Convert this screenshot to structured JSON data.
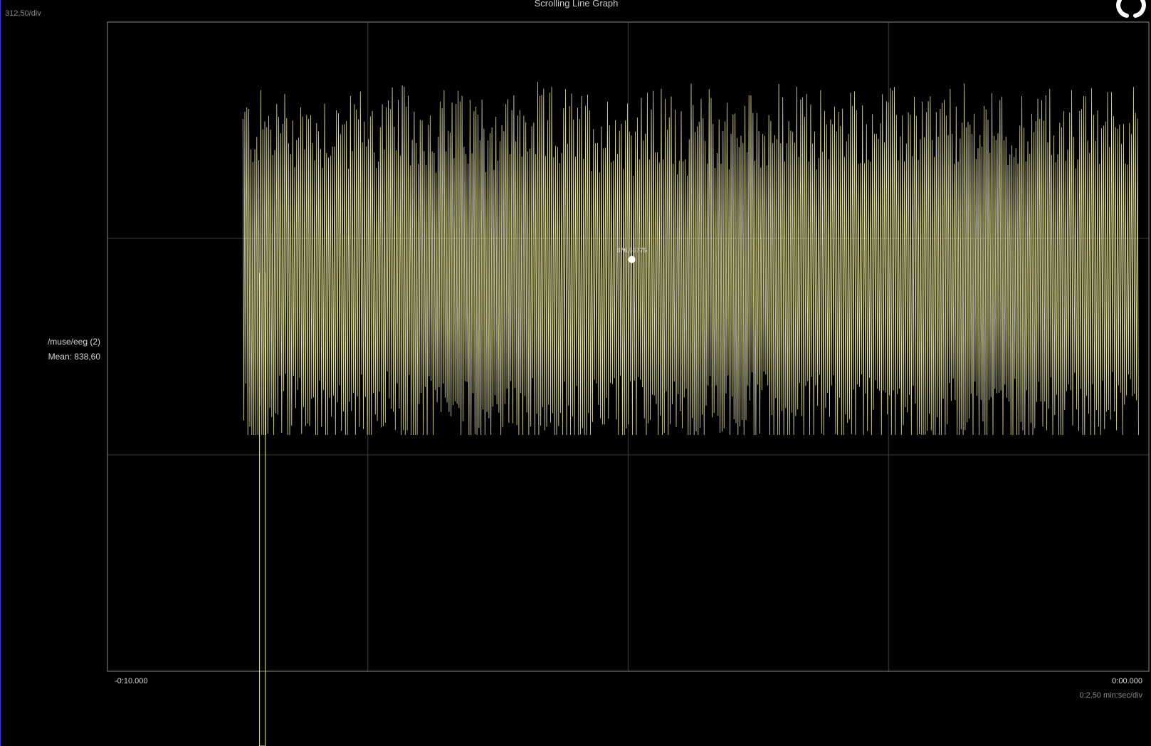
{
  "window": {
    "title": "Scrolling Line Graph"
  },
  "graph": {
    "y_scale_label": "312,50/div",
    "series_name": "/muse/eeg (2)",
    "mean_label": "Mean: 838,60",
    "x_start_label": "-0:10.000",
    "x_end_label": "0:00.000",
    "x_scale_label": "0:2,50 min:sec/div",
    "cursor_value": "876,66775",
    "cursor_icon": "circle-marker-icon",
    "reset_icon": "refresh-icon",
    "line_color": "#e8e49a",
    "grid_color": "#3c3c3c",
    "frame_color": "#8a8a8a"
  },
  "chart_data": {
    "type": "line",
    "title": "Scrolling Line Graph",
    "series": [
      {
        "name": "/muse/eeg (2)",
        "x_range_seconds": [
          -8.7,
          -0.1
        ],
        "approx_min": 370,
        "approx_max": 1440,
        "spike_min": -100,
        "mean": 838.6
      }
    ],
    "xlim": [
      -10,
      0
    ],
    "ylim": [
      -312.5,
      1562.5
    ],
    "y_per_div": 312.5,
    "x_per_div_seconds": 2.5,
    "cursor": {
      "x": -5.0,
      "y": 876.66775
    },
    "grid": true
  }
}
